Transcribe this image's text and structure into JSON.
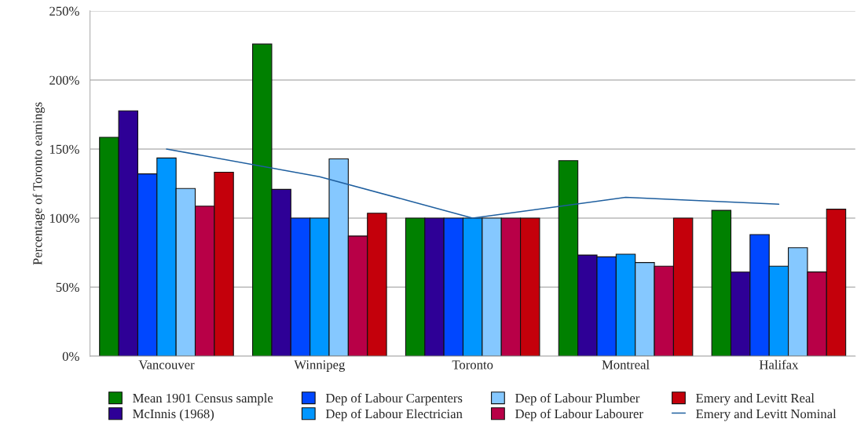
{
  "chart_data": {
    "type": "bar",
    "ylabel": "Percentage of Toronto earnings",
    "categories": [
      "Vancouver",
      "Winnipeg",
      "Toronto",
      "Montreal",
      "Halifax"
    ],
    "series": [
      {
        "name": "Mean 1901 Census sample",
        "color": "#008000",
        "values": [
          158.5,
          226,
          100,
          141.6,
          105.6
        ]
      },
      {
        "name": "McInnis (1968)",
        "color": "#2e0096",
        "values": [
          177.7,
          120.8,
          100,
          73.2,
          60.9
        ]
      },
      {
        "name": "Dep of Labour Carpenters",
        "color": "#0047ff",
        "values": [
          132,
          100,
          100,
          71.9,
          88
        ]
      },
      {
        "name": "Dep of Labour Electrician",
        "color": "#0096ff",
        "values": [
          143.5,
          100,
          100,
          73.8,
          65.2
        ]
      },
      {
        "name": "Dep of Labour Plumber",
        "color": "#85c8ff",
        "values": [
          121.4,
          142.9,
          100,
          67.8,
          78.5
        ]
      },
      {
        "name": "Dep of Labour Labourer",
        "color": "#b80047",
        "values": [
          108.6,
          87,
          100,
          65.2,
          61
        ]
      },
      {
        "name": "Emery and Levitt Real",
        "color": "#c4000b",
        "values": [
          133.2,
          103.5,
          100,
          100,
          106.4
        ]
      },
      {
        "name": "Emery and Levitt Nominal",
        "type": "line",
        "color": "#1f5f9f",
        "values": [
          150,
          130,
          100,
          115,
          110
        ]
      }
    ],
    "ylim": [
      0,
      250
    ],
    "yticks": [
      {
        "value": 0,
        "label": "0%"
      },
      {
        "value": 50,
        "label": "50%"
      },
      {
        "value": 100,
        "label": "100%"
      },
      {
        "value": 150,
        "label": "150%"
      },
      {
        "value": 200,
        "label": "200%"
      },
      {
        "value": 250,
        "label": "250%"
      }
    ],
    "grid": "y",
    "legend": "bottom",
    "marker": "none",
    "line_style": "solid"
  }
}
